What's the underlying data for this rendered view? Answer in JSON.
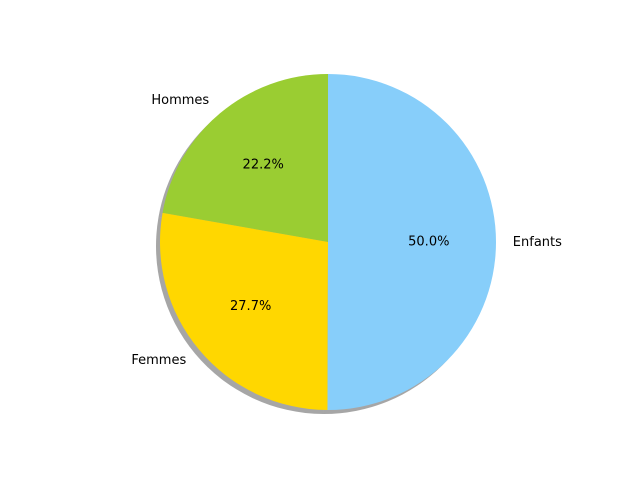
{
  "chart_data": {
    "type": "pie",
    "title": "",
    "start_angle_deg": 90,
    "direction": "counterclockwise",
    "shadow": true,
    "slices": [
      {
        "label": "Hommes",
        "value": 22.2,
        "pct_label": "22.2%",
        "color": "#9ACD32"
      },
      {
        "label": "Femmes",
        "value": 27.7,
        "pct_label": "27.7%",
        "color": "#FFD700"
      },
      {
        "label": "Enfants",
        "value": 50.0,
        "pct_label": "50.0%",
        "color": "#87CEFA"
      }
    ]
  }
}
